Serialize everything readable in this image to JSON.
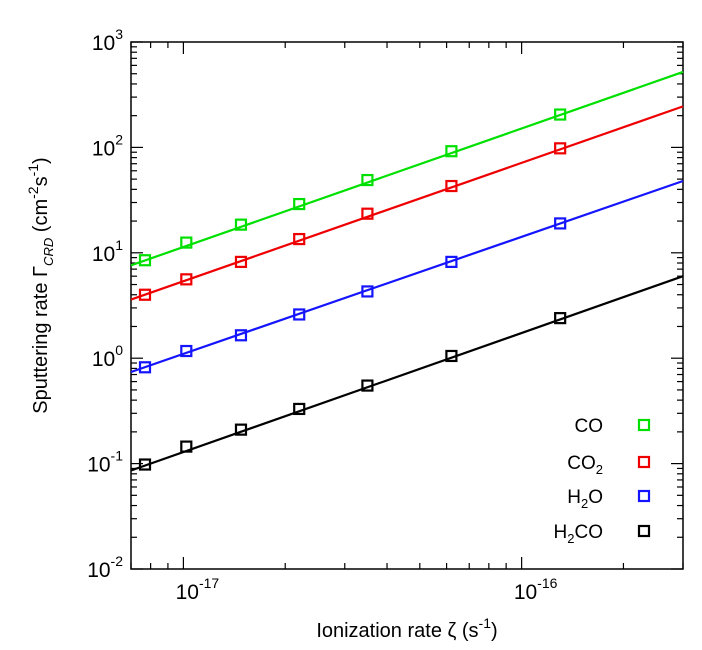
{
  "chart_data": {
    "type": "scatter",
    "xscale": "log",
    "yscale": "log",
    "xlim": [
      7e-18,
      3e-16
    ],
    "ylim": [
      0.01,
      1000
    ],
    "xlabel": {
      "main": "Ionization rate ζ (s",
      "sup": "-1",
      "close": ")"
    },
    "ylabel": {
      "main": "Sputtering rate Γ",
      "sub": "CRD",
      "mid": " (cm",
      "sup1": "-2",
      "s": "s",
      "sup2": "-1",
      "close": ")"
    },
    "x_ticks": [
      {
        "value": 1e-17,
        "base": "10",
        "exp": "-17"
      },
      {
        "value": 1e-16,
        "base": "10",
        "exp": "-16"
      }
    ],
    "y_ticks": [
      {
        "value": 0.01,
        "base": "10",
        "exp": "-2"
      },
      {
        "value": 0.1,
        "base": "10",
        "exp": "-1"
      },
      {
        "value": 1,
        "base": "10",
        "exp": "0"
      },
      {
        "value": 10,
        "base": "10",
        "exp": "1"
      },
      {
        "value": 100,
        "base": "10",
        "exp": "2"
      },
      {
        "value": 1000,
        "base": "10",
        "exp": "3"
      }
    ],
    "x": [
      7.7e-18,
      1.02e-17,
      1.48e-17,
      2.2e-17,
      3.5e-17,
      6.2e-17,
      1.3e-16
    ],
    "series": [
      {
        "name": "CO",
        "color": "#00e000",
        "values": [
          8.5,
          12.5,
          18.5,
          29,
          49,
          92,
          205
        ],
        "fit": [
          [
            7e-18,
            7.6
          ],
          [
            3e-16,
            520
          ]
        ]
      },
      {
        "name": "CO",
        "name_sub": "2",
        "color": "#ee0000",
        "values": [
          4.0,
          5.6,
          8.2,
          13.5,
          23.5,
          43,
          98
        ],
        "fit": [
          [
            7e-18,
            3.6
          ],
          [
            3e-16,
            245
          ]
        ]
      },
      {
        "name": "H",
        "name_sub": "2",
        "name_rest": "O",
        "color": "#1414ff",
        "values": [
          0.82,
          1.17,
          1.65,
          2.6,
          4.3,
          8.2,
          19
        ],
        "fit": [
          [
            7e-18,
            0.74
          ],
          [
            3e-16,
            48
          ]
        ]
      },
      {
        "name": "H",
        "name_sub": "2",
        "name_rest": "CO",
        "color": "#000000",
        "values": [
          0.098,
          0.145,
          0.21,
          0.33,
          0.55,
          1.05,
          2.4
        ],
        "fit": [
          [
            7e-18,
            0.086
          ],
          [
            3e-16,
            6.0
          ]
        ]
      }
    ],
    "legend": "bottom-right",
    "grid": false
  }
}
